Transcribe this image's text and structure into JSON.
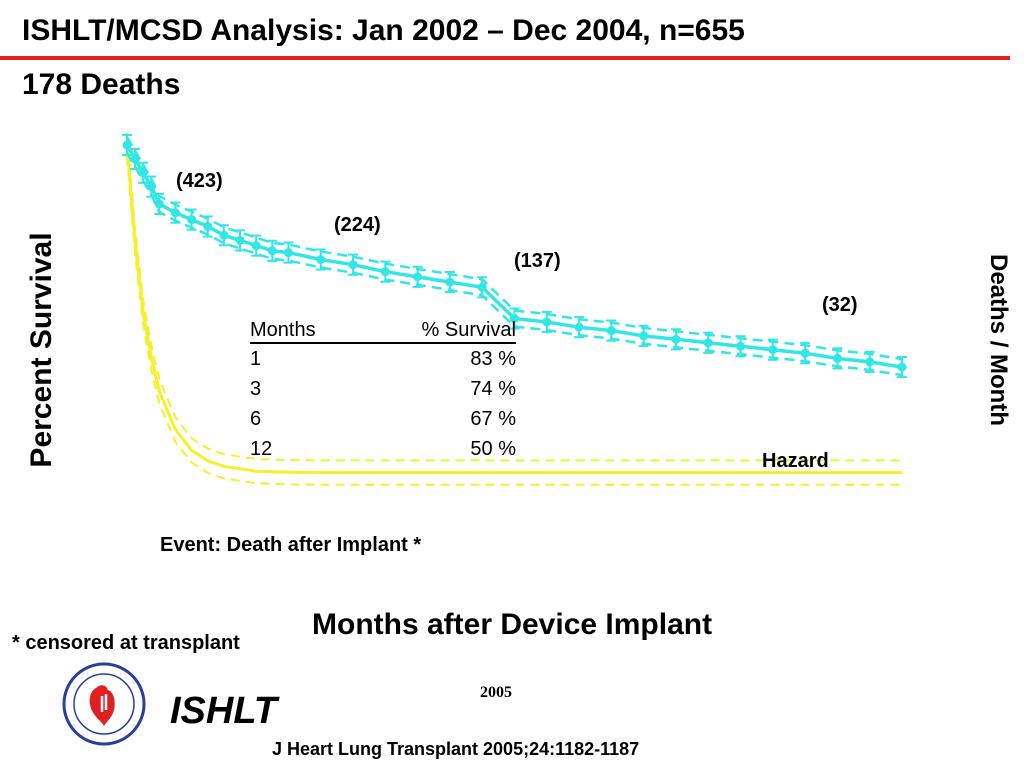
{
  "header": {
    "title": "ISHLT/MCSD Analysis:  Jan 2002 – Dec 2004, n=655",
    "subtitle": "178 Deaths"
  },
  "chart_data": {
    "type": "line",
    "ylabel": "Percent Survival",
    "ylabel_right": "Deaths / Month",
    "xlabel": "Months after Device Implant",
    "event_note": "Event: Death after Implant *",
    "footnote": "* censored at transplant",
    "colors": {
      "survival": "#33e6e6",
      "hazard": "#f5f028"
    },
    "x_range": [
      0,
      24
    ],
    "y_range": [
      0,
      100
    ],
    "grid": false,
    "legend": "none",
    "at_risk_labels": [
      {
        "text": "(423)",
        "x": 1.6,
        "y": 88
      },
      {
        "text": "(224)",
        "x": 7.2,
        "y": 76
      },
      {
        "text": "(137)",
        "x": 12.7,
        "y": 67
      },
      {
        "text": "(32)",
        "x": 21.4,
        "y": 56
      }
    ],
    "series": [
      {
        "name": "Survival",
        "x": [
          0,
          0.25,
          0.5,
          0.75,
          1,
          1.5,
          2,
          2.5,
          3,
          3.5,
          4,
          4.5,
          5,
          6,
          7,
          8,
          9,
          10,
          11,
          12,
          13,
          14,
          15,
          16,
          17,
          18,
          19,
          20,
          21,
          22,
          23,
          24
        ],
        "values": [
          100,
          96,
          92,
          88,
          83,
          80.5,
          78.5,
          76.5,
          74,
          72.5,
          71,
          69.5,
          69,
          67,
          65.5,
          63.5,
          62,
          60.5,
          59,
          50,
          49,
          47.5,
          46.5,
          45,
          44,
          43,
          42,
          41,
          40,
          38.5,
          37.5,
          36
        ],
        "ci_width": 2.3
      },
      {
        "name": "Hazard",
        "x": [
          0,
          0.25,
          0.5,
          0.75,
          1,
          1.5,
          2,
          2.5,
          3,
          4,
          5,
          6,
          7,
          8,
          10,
          12,
          16,
          20,
          24
        ],
        "values": [
          100,
          72,
          52,
          39,
          29,
          18,
          12,
          9,
          7.4,
          6,
          5.7,
          5.6,
          5.6,
          5.6,
          5.6,
          5.6,
          5.6,
          5.6,
          5.6
        ],
        "ci_width": 3.5
      }
    ],
    "survival_table": {
      "headers": [
        "Months",
        "% Survival"
      ],
      "rows": [
        [
          "1",
          "83 %"
        ],
        [
          "3",
          "74 %"
        ],
        [
          "6",
          "67 %"
        ],
        [
          "12",
          "50 %"
        ]
      ]
    }
  },
  "hazard_label": "Hazard",
  "footer": {
    "logo": "seal-icon",
    "logo_name": "ISHLT",
    "year": "2005",
    "citation": "J Heart Lung Transplant 2005;24:1182-1187"
  }
}
